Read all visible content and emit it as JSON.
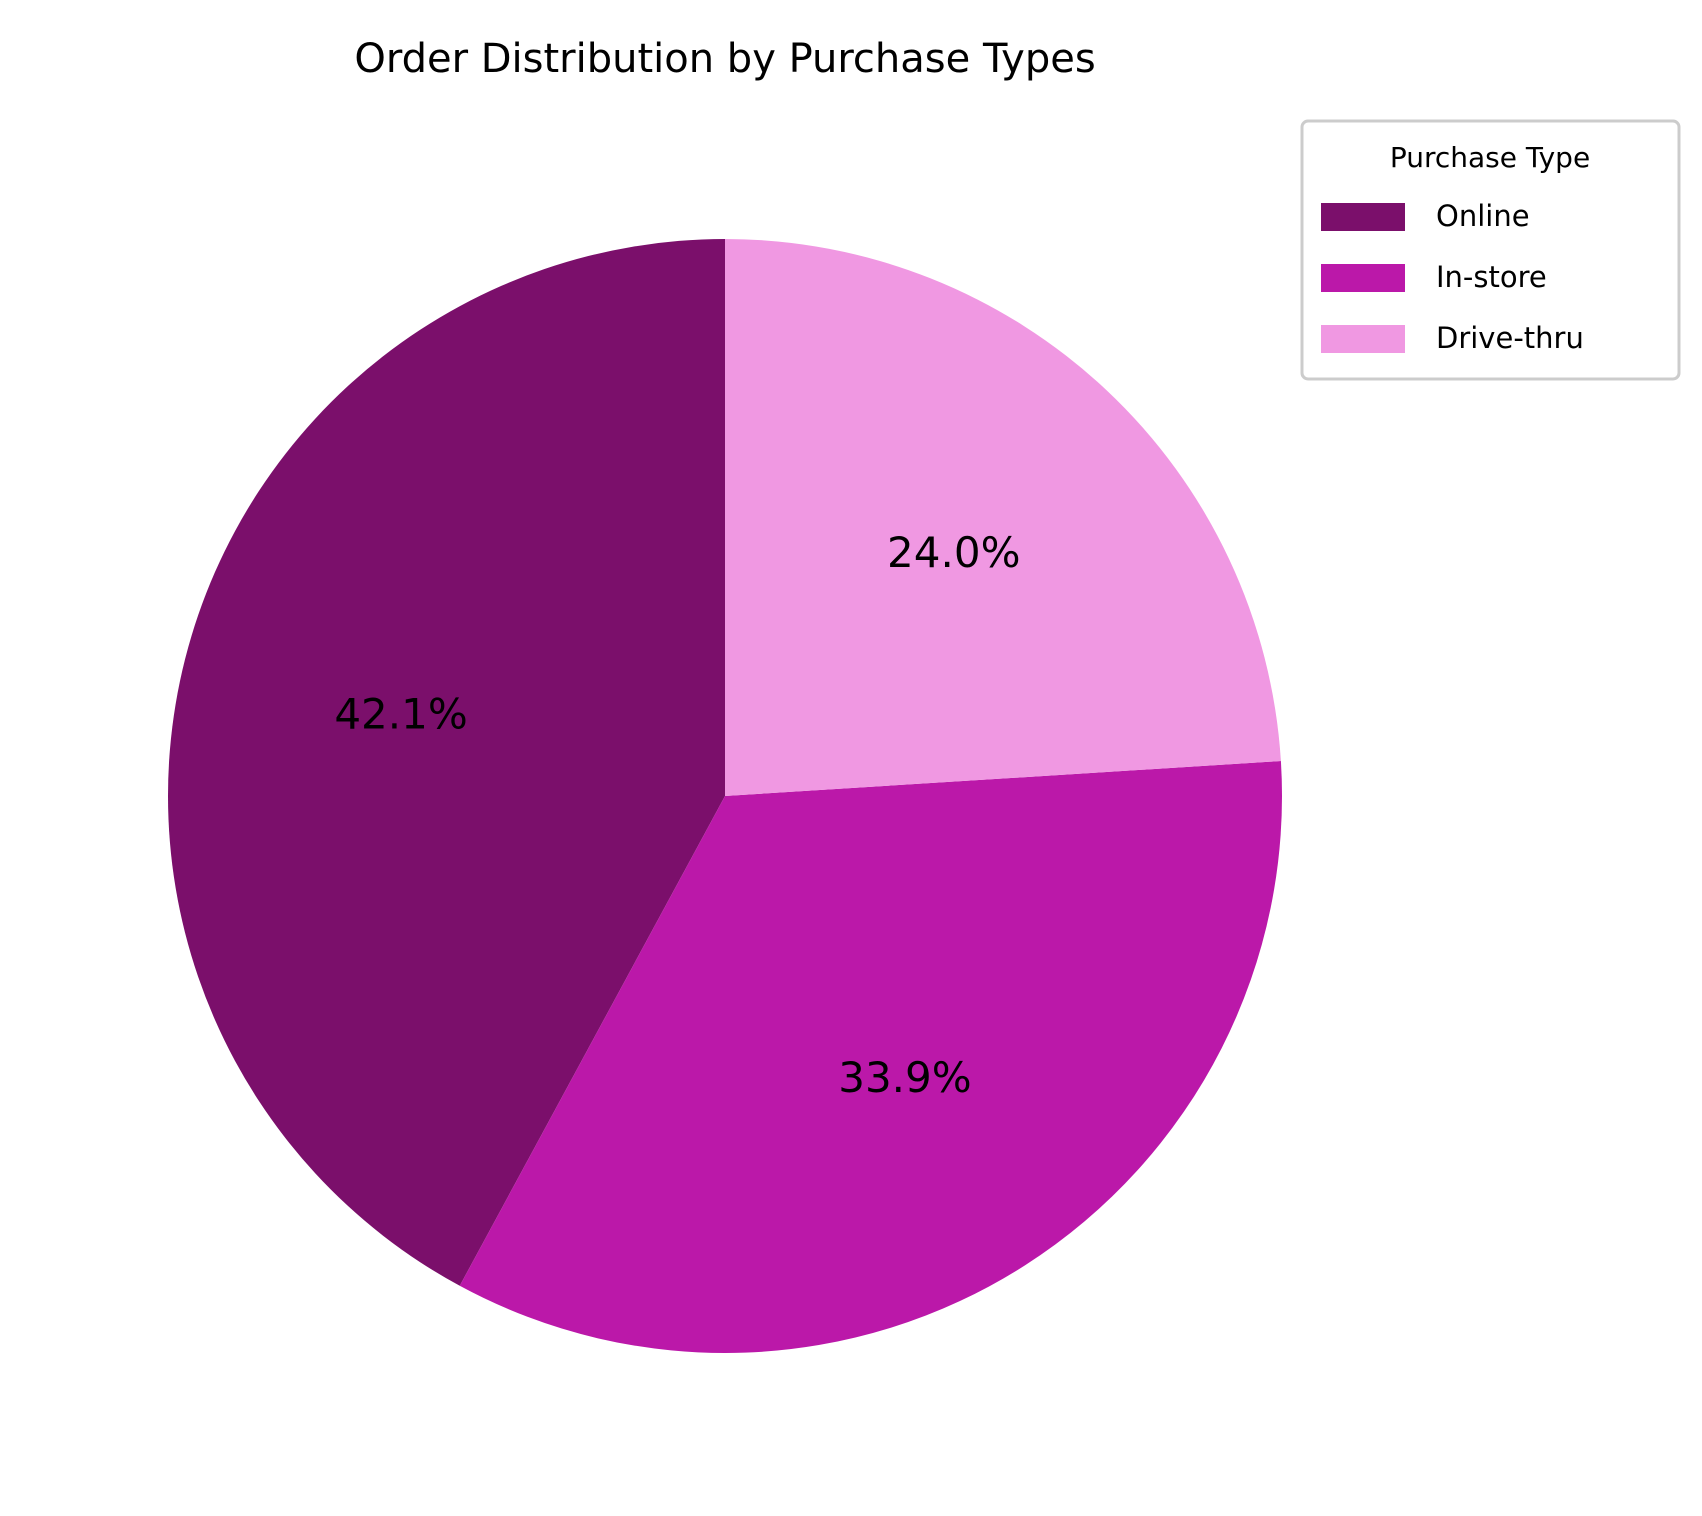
{
  "chart_data": {
    "type": "pie",
    "title": "Order Distribution by Purchase Types",
    "legend_title": "Purchase Type",
    "legend_position": "top-right",
    "start_angle_deg": 90,
    "direction": "counterclockwise",
    "slices": [
      {
        "label": "Online",
        "value": 42.1,
        "pct_label": "42.1%",
        "color": "#7b0f6b"
      },
      {
        "label": "In-store",
        "value": 33.9,
        "pct_label": "33.9%",
        "color": "#bb18a9"
      },
      {
        "label": "Drive-thru",
        "value": 24.0,
        "pct_label": "24.0%",
        "color": "#f098e2"
      }
    ]
  }
}
